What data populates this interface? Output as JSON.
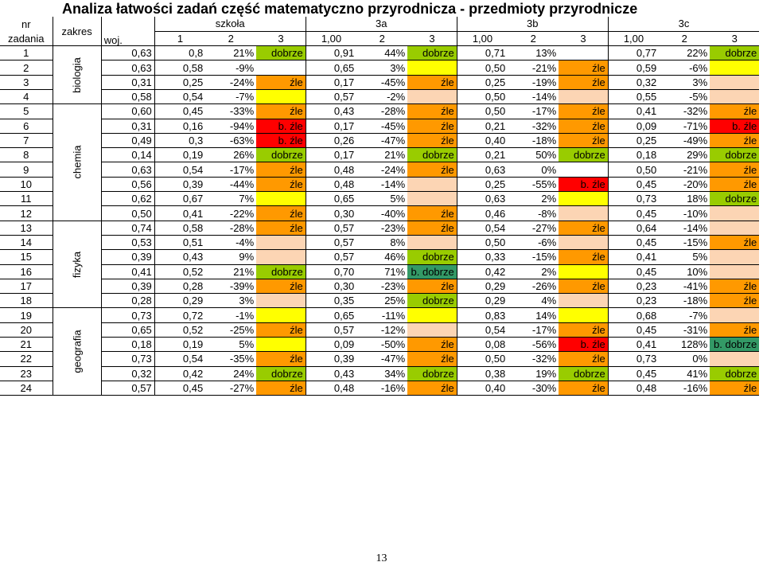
{
  "title": "Analiza łatwości zadań część matematyczno przyrodnicza - przedmioty przyrodnicze",
  "header": {
    "nr_line1": "nr",
    "nr_line2": "zadania",
    "zakres": "zakres",
    "woj": "woj.",
    "groups": [
      "szkoła",
      "3a",
      "3b",
      "3c"
    ],
    "sub": [
      "1",
      "2",
      "3",
      "1,00",
      "2",
      "3",
      "1,00",
      "2",
      "3",
      "1,00",
      "2",
      "3"
    ]
  },
  "zakresy": [
    {
      "label": "biologia",
      "rows": 4
    },
    {
      "label": "chemia",
      "rows": 8
    },
    {
      "label": "fizyka",
      "rows": 6
    },
    {
      "label": "geografia",
      "rows": 6
    }
  ],
  "colors": {
    "dobrze": "#99cc00",
    "zle": "#ff9900",
    "b_zle": "#ff0000",
    "b_dobrze": "#339966",
    "empty_yellow": "#ffff00",
    "empty_peach": "#fcd5b4"
  },
  "rows": [
    {
      "nr": "1",
      "woj": "0,63",
      "s": [
        "0,8",
        "21%",
        "dobrze"
      ],
      "a": [
        "0,91",
        "44%",
        "dobrze"
      ],
      "b": [
        "0,71",
        "13%",
        ""
      ],
      "c": [
        "0,77",
        "22%",
        "dobrze"
      ]
    },
    {
      "nr": "2",
      "woj": "0,63",
      "s": [
        "0,58",
        "-9%",
        ""
      ],
      "a": [
        "0,65",
        "3%",
        ""
      ],
      "b": [
        "0,50",
        "-21%",
        "źle"
      ],
      "c": [
        "0,59",
        "-6%",
        ""
      ]
    },
    {
      "nr": "3",
      "woj": "0,31",
      "s": [
        "0,25",
        "-24%",
        "źle"
      ],
      "a": [
        "0,17",
        "-45%",
        "źle"
      ],
      "b": [
        "0,25",
        "-19%",
        "źle"
      ],
      "c": [
        "0,32",
        "3%",
        ""
      ]
    },
    {
      "nr": "4",
      "woj": "0,58",
      "s": [
        "0,54",
        "-7%",
        ""
      ],
      "a": [
        "0,57",
        "-2%",
        ""
      ],
      "b": [
        "0,50",
        "-14%",
        ""
      ],
      "c": [
        "0,55",
        "-5%",
        ""
      ]
    },
    {
      "nr": "5",
      "woj": "0,60",
      "s": [
        "0,45",
        "-33%",
        "źle"
      ],
      "a": [
        "0,43",
        "-28%",
        "źle"
      ],
      "b": [
        "0,50",
        "-17%",
        "źle"
      ],
      "c": [
        "0,41",
        "-32%",
        "źle"
      ]
    },
    {
      "nr": "6",
      "woj": "0,31",
      "s": [
        "0,16",
        "-94%",
        "b. źle"
      ],
      "a": [
        "0,17",
        "-45%",
        "źle"
      ],
      "b": [
        "0,21",
        "-32%",
        "źle"
      ],
      "c": [
        "0,09",
        "-71%",
        "b. źle"
      ]
    },
    {
      "nr": "7",
      "woj": "0,49",
      "s": [
        "0,3",
        "-63%",
        "b. źle"
      ],
      "a": [
        "0,26",
        "-47%",
        "źle"
      ],
      "b": [
        "0,40",
        "-18%",
        "źle"
      ],
      "c": [
        "0,25",
        "-49%",
        "źle"
      ]
    },
    {
      "nr": "8",
      "woj": "0,14",
      "s": [
        "0,19",
        "26%",
        "dobrze"
      ],
      "a": [
        "0,17",
        "21%",
        "dobrze"
      ],
      "b": [
        "0,21",
        "50%",
        "dobrze"
      ],
      "c": [
        "0,18",
        "29%",
        "dobrze"
      ]
    },
    {
      "nr": "9",
      "woj": "0,63",
      "s": [
        "0,54",
        "-17%",
        "źle"
      ],
      "a": [
        "0,48",
        "-24%",
        "źle"
      ],
      "b": [
        "0,63",
        "0%",
        ""
      ],
      "c": [
        "0,50",
        "-21%",
        "źle"
      ]
    },
    {
      "nr": "10",
      "woj": "0,56",
      "s": [
        "0,39",
        "-44%",
        "źle"
      ],
      "a": [
        "0,48",
        "-14%",
        ""
      ],
      "b": [
        "0,25",
        "-55%",
        "b. źle"
      ],
      "c": [
        "0,45",
        "-20%",
        "źle"
      ]
    },
    {
      "nr": "11",
      "woj": "0,62",
      "s": [
        "0,67",
        "7%",
        ""
      ],
      "a": [
        "0,65",
        "5%",
        ""
      ],
      "b": [
        "0,63",
        "2%",
        ""
      ],
      "c": [
        "0,73",
        "18%",
        "dobrze"
      ]
    },
    {
      "nr": "12",
      "woj": "0,50",
      "s": [
        "0,41",
        "-22%",
        "źle"
      ],
      "a": [
        "0,30",
        "-40%",
        "źle"
      ],
      "b": [
        "0,46",
        "-8%",
        ""
      ],
      "c": [
        "0,45",
        "-10%",
        ""
      ]
    },
    {
      "nr": "13",
      "woj": "0,74",
      "s": [
        "0,58",
        "-28%",
        "źle"
      ],
      "a": [
        "0,57",
        "-23%",
        "źle"
      ],
      "b": [
        "0,54",
        "-27%",
        "źle"
      ],
      "c": [
        "0,64",
        "-14%",
        ""
      ]
    },
    {
      "nr": "14",
      "woj": "0,53",
      "s": [
        "0,51",
        "-4%",
        ""
      ],
      "a": [
        "0,57",
        "8%",
        ""
      ],
      "b": [
        "0,50",
        "-6%",
        ""
      ],
      "c": [
        "0,45",
        "-15%",
        "źle"
      ]
    },
    {
      "nr": "15",
      "woj": "0,39",
      "s": [
        "0,43",
        "9%",
        ""
      ],
      "a": [
        "0,57",
        "46%",
        "dobrze"
      ],
      "b": [
        "0,33",
        "-15%",
        "źle"
      ],
      "c": [
        "0,41",
        "5%",
        ""
      ]
    },
    {
      "nr": "16",
      "woj": "0,41",
      "s": [
        "0,52",
        "21%",
        "dobrze"
      ],
      "a": [
        "0,70",
        "71%",
        "b. dobrze"
      ],
      "b": [
        "0,42",
        "2%",
        ""
      ],
      "c": [
        "0,45",
        "10%",
        ""
      ]
    },
    {
      "nr": "17",
      "woj": "0,39",
      "s": [
        "0,28",
        "-39%",
        "źle"
      ],
      "a": [
        "0,30",
        "-23%",
        "źle"
      ],
      "b": [
        "0,29",
        "-26%",
        "źle"
      ],
      "c": [
        "0,23",
        "-41%",
        "źle"
      ]
    },
    {
      "nr": "18",
      "woj": "0,28",
      "s": [
        "0,29",
        "3%",
        ""
      ],
      "a": [
        "0,35",
        "25%",
        "dobrze"
      ],
      "b": [
        "0,29",
        "4%",
        ""
      ],
      "c": [
        "0,23",
        "-18%",
        "źle"
      ]
    },
    {
      "nr": "19",
      "woj": "0,73",
      "s": [
        "0,72",
        "-1%",
        ""
      ],
      "a": [
        "0,65",
        "-11%",
        ""
      ],
      "b": [
        "0,83",
        "14%",
        ""
      ],
      "c": [
        "0,68",
        "-7%",
        ""
      ]
    },
    {
      "nr": "20",
      "woj": "0,65",
      "s": [
        "0,52",
        "-25%",
        "źle"
      ],
      "a": [
        "0,57",
        "-12%",
        ""
      ],
      "b": [
        "0,54",
        "-17%",
        "źle"
      ],
      "c": [
        "0,45",
        "-31%",
        "źle"
      ]
    },
    {
      "nr": "21",
      "woj": "0,18",
      "s": [
        "0,19",
        "5%",
        ""
      ],
      "a": [
        "0,09",
        "-50%",
        "źle"
      ],
      "b": [
        "0,08",
        "-56%",
        "b. źle"
      ],
      "c": [
        "0,41",
        "128%",
        "b. dobrze"
      ]
    },
    {
      "nr": "22",
      "woj": "0,73",
      "s": [
        "0,54",
        "-35%",
        "źle"
      ],
      "a": [
        "0,39",
        "-47%",
        "źle"
      ],
      "b": [
        "0,50",
        "-32%",
        "źle"
      ],
      "c": [
        "0,73",
        "0%",
        ""
      ]
    },
    {
      "nr": "23",
      "woj": "0,32",
      "s": [
        "0,42",
        "24%",
        "dobrze"
      ],
      "a": [
        "0,43",
        "34%",
        "dobrze"
      ],
      "b": [
        "0,38",
        "19%",
        "dobrze"
      ],
      "c": [
        "0,45",
        "41%",
        "dobrze"
      ]
    },
    {
      "nr": "24",
      "woj": "0,57",
      "s": [
        "0,45",
        "-27%",
        "źle"
      ],
      "a": [
        "0,48",
        "-16%",
        "źle"
      ],
      "b": [
        "0,40",
        "-30%",
        "źle"
      ],
      "c": [
        "0,48",
        "-16%",
        "źle"
      ]
    }
  ],
  "page_number": "13"
}
